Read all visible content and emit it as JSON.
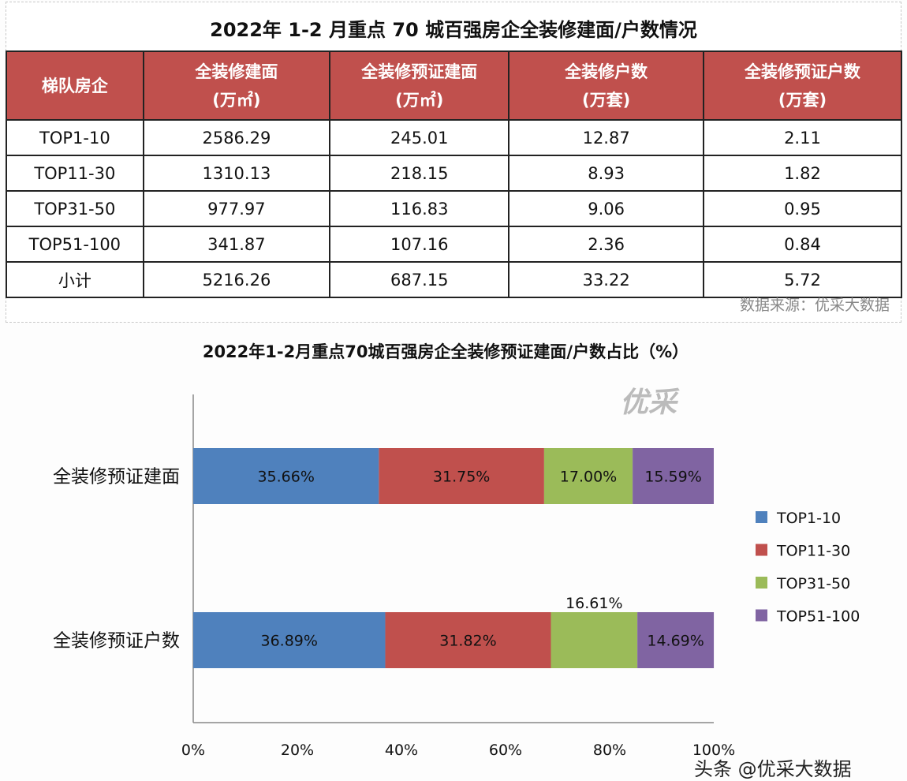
{
  "table": {
    "title": "2022年 1-2 月重点 70 城百强房企全装修建面/户数情况",
    "headers": [
      {
        "label": "梯队房企",
        "unit": ""
      },
      {
        "label": "全装修建面",
        "unit": "(万㎡)"
      },
      {
        "label": "全装修预证建面",
        "unit": "(万㎡)"
      },
      {
        "label": "全装修户数",
        "unit": "(万套)"
      },
      {
        "label": "全装修预证户数",
        "unit": "(万套)"
      }
    ],
    "rows": [
      [
        "TOP1-10",
        "2586.29",
        "245.01",
        "12.87",
        "2.11"
      ],
      [
        "TOP11-30",
        "1310.13",
        "218.15",
        "8.93",
        "1.82"
      ],
      [
        "TOP31-50",
        "977.97",
        "116.83",
        "9.06",
        "0.95"
      ],
      [
        "TOP51-100",
        "341.87",
        "107.16",
        "2.36",
        "0.84"
      ],
      [
        "小计",
        "5216.26",
        "687.15",
        "33.22",
        "5.72"
      ]
    ],
    "source": "数据来源：优采大数据",
    "header_color": "#c0504d"
  },
  "chart_data": {
    "type": "bar",
    "orientation": "horizontal",
    "stacked": "percent",
    "title": "2022年1-2月重点70城百强房企全装修预证建面/户数占比（%）",
    "categories": [
      "全装修预证建面",
      "全装修预证户数"
    ],
    "series": [
      {
        "name": "TOP1-10",
        "color": "#4f81bd",
        "values": [
          35.66,
          36.89
        ],
        "labels": [
          "35.66%",
          "36.89%"
        ]
      },
      {
        "name": "TOP11-30",
        "color": "#c0504d",
        "values": [
          31.75,
          31.82
        ],
        "labels": [
          "31.75%",
          "31.82%"
        ]
      },
      {
        "name": "TOP31-50",
        "color": "#9bbb59",
        "values": [
          17.0,
          16.61
        ],
        "labels": [
          "17.00%",
          "16.61%"
        ]
      },
      {
        "name": "TOP51-100",
        "color": "#8064a2",
        "values": [
          15.59,
          14.69
        ],
        "labels": [
          "15.59%",
          "14.69%"
        ]
      }
    ],
    "xlim": [
      0,
      100
    ],
    "xticks": [
      "0%",
      "20%",
      "40%",
      "60%",
      "80%",
      "100%"
    ],
    "grid": false,
    "legend": "right"
  },
  "watermark": "优采",
  "credit": "头条 @优采大数据"
}
